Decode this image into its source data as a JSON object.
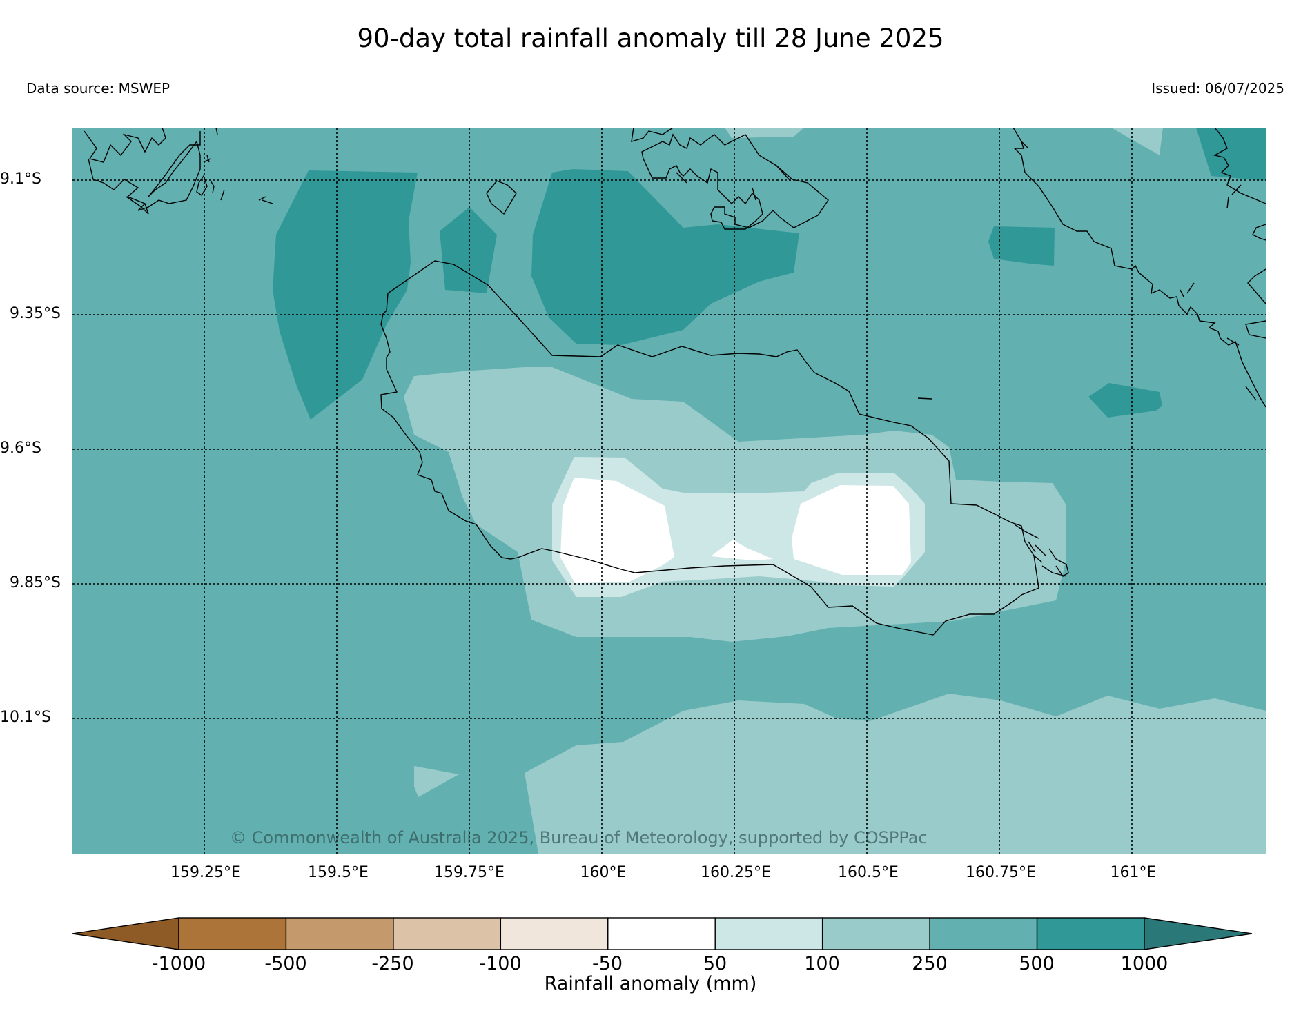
{
  "header": {
    "title": "90-day total rainfall anomaly till 28 June 2025",
    "source": "Data source: MSWEP",
    "issued": "Issued: 06/07/2025"
  },
  "map": {
    "lat_labels": [
      "9.1°S",
      "9.35°S",
      "9.6°S",
      "9.85°S",
      "10.1°S"
    ],
    "lon_labels": [
      "159.25°E",
      "159.5°E",
      "159.75°E",
      "160°E",
      "160.25°E",
      "160.5°E",
      "160.75°E",
      "161°E"
    ],
    "copyright": "© Commonwealth of Australia 2025, Bureau of Meteorology, supported by COSPPac",
    "colors": {
      "band_50_100": "#cde6e6",
      "band_100_250": "#99cbcb",
      "band_250_500": "#62b0b0",
      "band_500_1000": "#319898",
      "band_neutral": "#ffffff"
    }
  },
  "colorbar": {
    "label": "Rainfall anomaly (mm)",
    "ticks": [
      "-1000",
      "-500",
      "-250",
      "-100",
      "-50",
      "50",
      "100",
      "250",
      "500",
      "1000"
    ],
    "colors": [
      "#8e5a26",
      "#ad7439",
      "#c49a6d",
      "#dcc3a7",
      "#f1e6dc",
      "#ffffff",
      "#cde6e6",
      "#99cbcb",
      "#62b0b0",
      "#319898",
      "#2a7878"
    ]
  }
}
